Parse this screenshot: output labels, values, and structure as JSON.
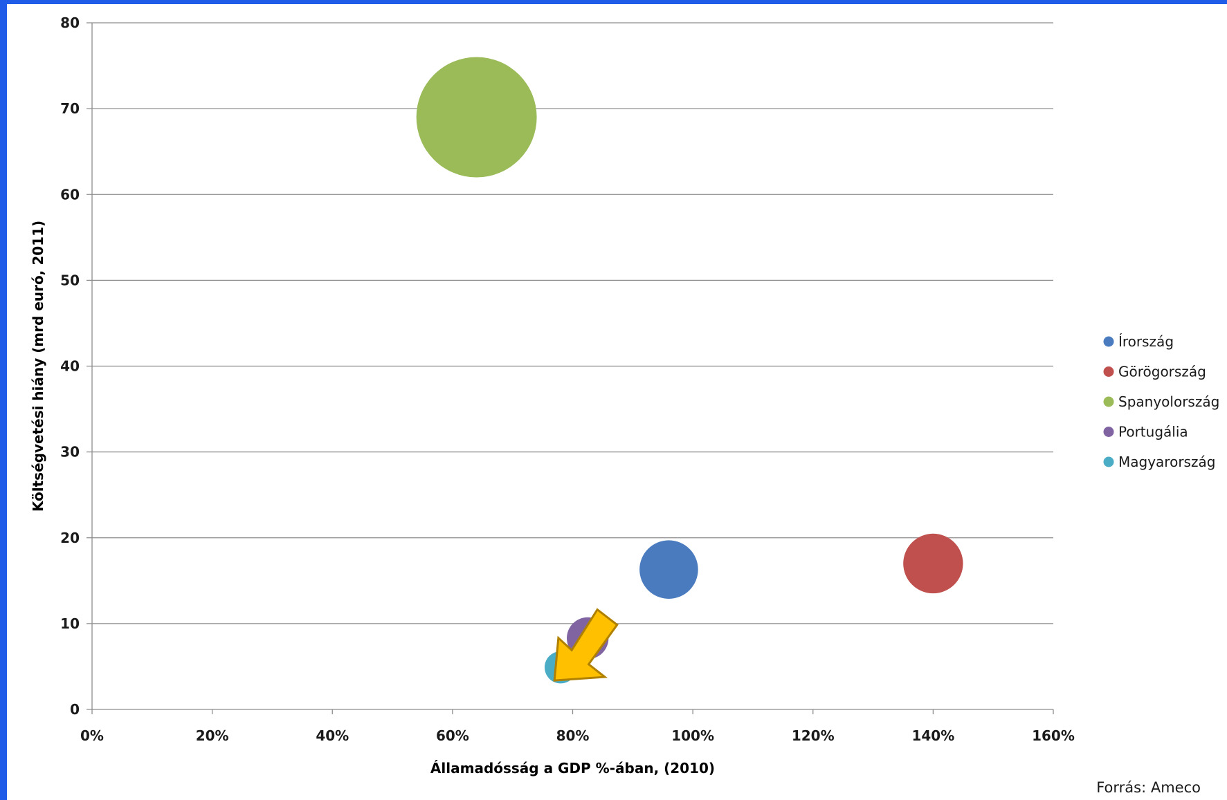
{
  "chart_data": {
    "type": "bubble",
    "title": "",
    "xlabel": "Államadósság a GDP %-ában, (2010)",
    "ylabel": "Költségvetési hiány (mrd euró, 2011)",
    "xlim": [
      0,
      160
    ],
    "ylim": [
      0,
      80
    ],
    "x_ticks": [
      "0%",
      "20%",
      "40%",
      "60%",
      "80%",
      "100%",
      "120%",
      "140%",
      "160%"
    ],
    "y_ticks": [
      "0",
      "10",
      "20",
      "30",
      "40",
      "50",
      "60",
      "70",
      "80"
    ],
    "grid": "horizontal",
    "legend_position": "right",
    "series": [
      {
        "name": "Írország",
        "x": 96,
        "y": 16.3,
        "size": 16.3,
        "color": "#4a7bbf"
      },
      {
        "name": "Görögország",
        "x": 140,
        "y": 17,
        "size": 17,
        "color": "#c0504d"
      },
      {
        "name": "Spanyolország",
        "x": 64,
        "y": 69,
        "size": 69,
        "color": "#9bbb59"
      },
      {
        "name": "Portugália",
        "x": 82.5,
        "y": 8.3,
        "size": 8.3,
        "color": "#8064a2"
      },
      {
        "name": "Magyarország",
        "x": 78,
        "y": 4.9,
        "size": 4.9,
        "color": "#4bacc6"
      }
    ],
    "annotations": [
      {
        "type": "arrow",
        "target": "Magyarország",
        "color": "#ffc000",
        "icon": "arrow-down-left-icon"
      }
    ]
  },
  "source_text": "Forrás: Ameco"
}
